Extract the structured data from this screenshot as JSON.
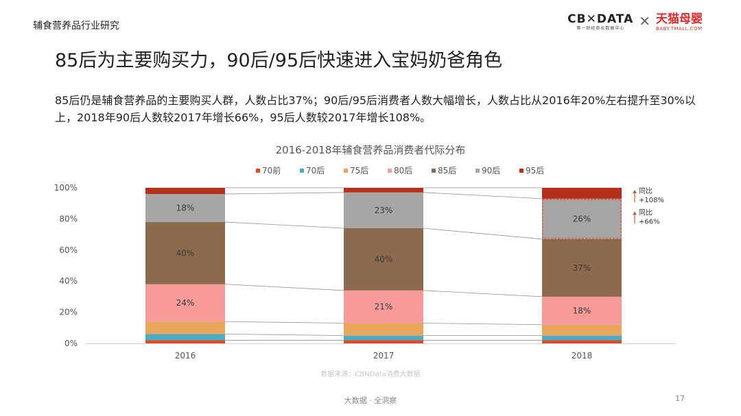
{
  "header": {
    "section_label": "辅食营养品行业研究",
    "brand_left": "CB✕DATA",
    "brand_left_sub": "第一财经商业数据中心",
    "brand_sep": "×",
    "brand_right": "天猫母婴",
    "brand_right_sub": "BABY.TMALL.COM"
  },
  "slide": {
    "title": "85后为主要购买力，90后/95后快速进入宝妈奶爸角色",
    "summary": "85后仍是辅食营养品的主要购买人群，人数占比37%；90后/95后消费者人数大幅增长，人数占比从2016年20%左右提升至30%以上，2018年90后人数较2017年增长66%，95后人数较2017年增长108%。",
    "source": "数据来源：CBNData消费大数据",
    "footer": "大数据 · 全洞察",
    "page_number": "17"
  },
  "chart_data": {
    "type": "bar",
    "stacked": true,
    "title": "2016-2018年辅食营养品消费者代际分布",
    "categories": [
      "2016",
      "2017",
      "2018"
    ],
    "y_tick_labels": [
      "0%",
      "20%",
      "40%",
      "60%",
      "80%",
      "100%"
    ],
    "ylim": [
      0,
      100
    ],
    "grid": false,
    "legend_position": "top",
    "series": [
      {
        "name": "70前",
        "color": "#e2491d",
        "values": [
          2,
          2,
          2
        ]
      },
      {
        "name": "70后",
        "color": "#4bacc6",
        "values": [
          4,
          3,
          3
        ]
      },
      {
        "name": "75后",
        "color": "#e8a55c",
        "values": [
          8,
          8,
          7
        ]
      },
      {
        "name": "80后",
        "color": "#f79a9a",
        "values": [
          24,
          21,
          18
        ]
      },
      {
        "name": "85后",
        "color": "#8b6a4e",
        "values": [
          40,
          40,
          37
        ]
      },
      {
        "name": "90后",
        "color": "#a6a6a6",
        "values": [
          18,
          23,
          26
        ]
      },
      {
        "name": "95后",
        "color": "#b62f1a",
        "values": [
          4,
          3,
          7
        ]
      }
    ],
    "data_labels": {
      "80后": [
        "24%",
        "21%",
        "18%"
      ],
      "85后": [
        "40%",
        "40%",
        "37%"
      ],
      "90后": [
        "18%",
        "23%",
        "26%"
      ]
    },
    "annotations": [
      {
        "label": "同比",
        "value": "+108%",
        "category": "2018",
        "series": "95后",
        "arrow": "up"
      },
      {
        "label": "同比",
        "value": "+66%",
        "category": "2018",
        "series": "90后",
        "arrow": "up"
      }
    ]
  }
}
